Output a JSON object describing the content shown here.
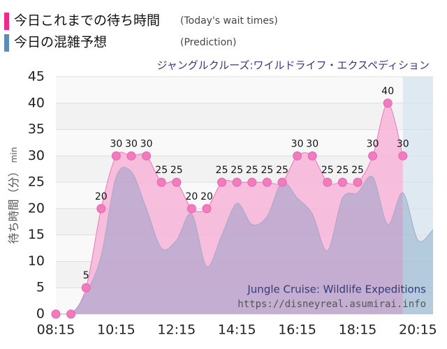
{
  "chart_data": {
    "type": "area",
    "subtitle": "ジャングルクルーズ:ワイルドライフ・エクスペディション",
    "ylabel": "待ち時間（分）",
    "yunit": "min",
    "watermark": [
      "Jungle Cruise: Wildlife Expeditions",
      "https://disneyreal.asumirai.info"
    ],
    "categories": [
      "08:15",
      null,
      null,
      null,
      "10:15",
      null,
      null,
      null,
      "12:15",
      null,
      null,
      null,
      "14:15",
      null,
      null,
      null,
      "16:15",
      null,
      null,
      null,
      "18:15",
      null,
      null,
      null,
      "20:15",
      null
    ],
    "series": [
      {
        "name": "今日これまでの待ち時間",
        "name_en": "(Today's wait times)",
        "color": "#f0288c",
        "values": [
          0,
          0,
          5,
          20,
          30,
          30,
          30,
          25,
          25,
          20,
          20,
          25,
          25,
          25,
          25,
          25,
          30,
          30,
          25,
          25,
          25,
          30,
          40,
          30,
          null,
          null
        ]
      },
      {
        "name": "今日の混雑予想",
        "name_en": "(Prediction)",
        "color": "#5b8db8",
        "values": [
          0,
          0,
          4,
          11,
          26,
          27,
          20,
          12.5,
          14,
          19,
          9,
          15,
          21,
          17,
          18.5,
          25,
          22,
          19,
          12,
          22,
          23,
          26,
          17,
          23,
          14,
          16
        ]
      }
    ],
    "ylim": [
      0,
      45
    ],
    "yticks": [
      0,
      5,
      10,
      15,
      20,
      25,
      30,
      35,
      40,
      45
    ],
    "grid": true
  }
}
